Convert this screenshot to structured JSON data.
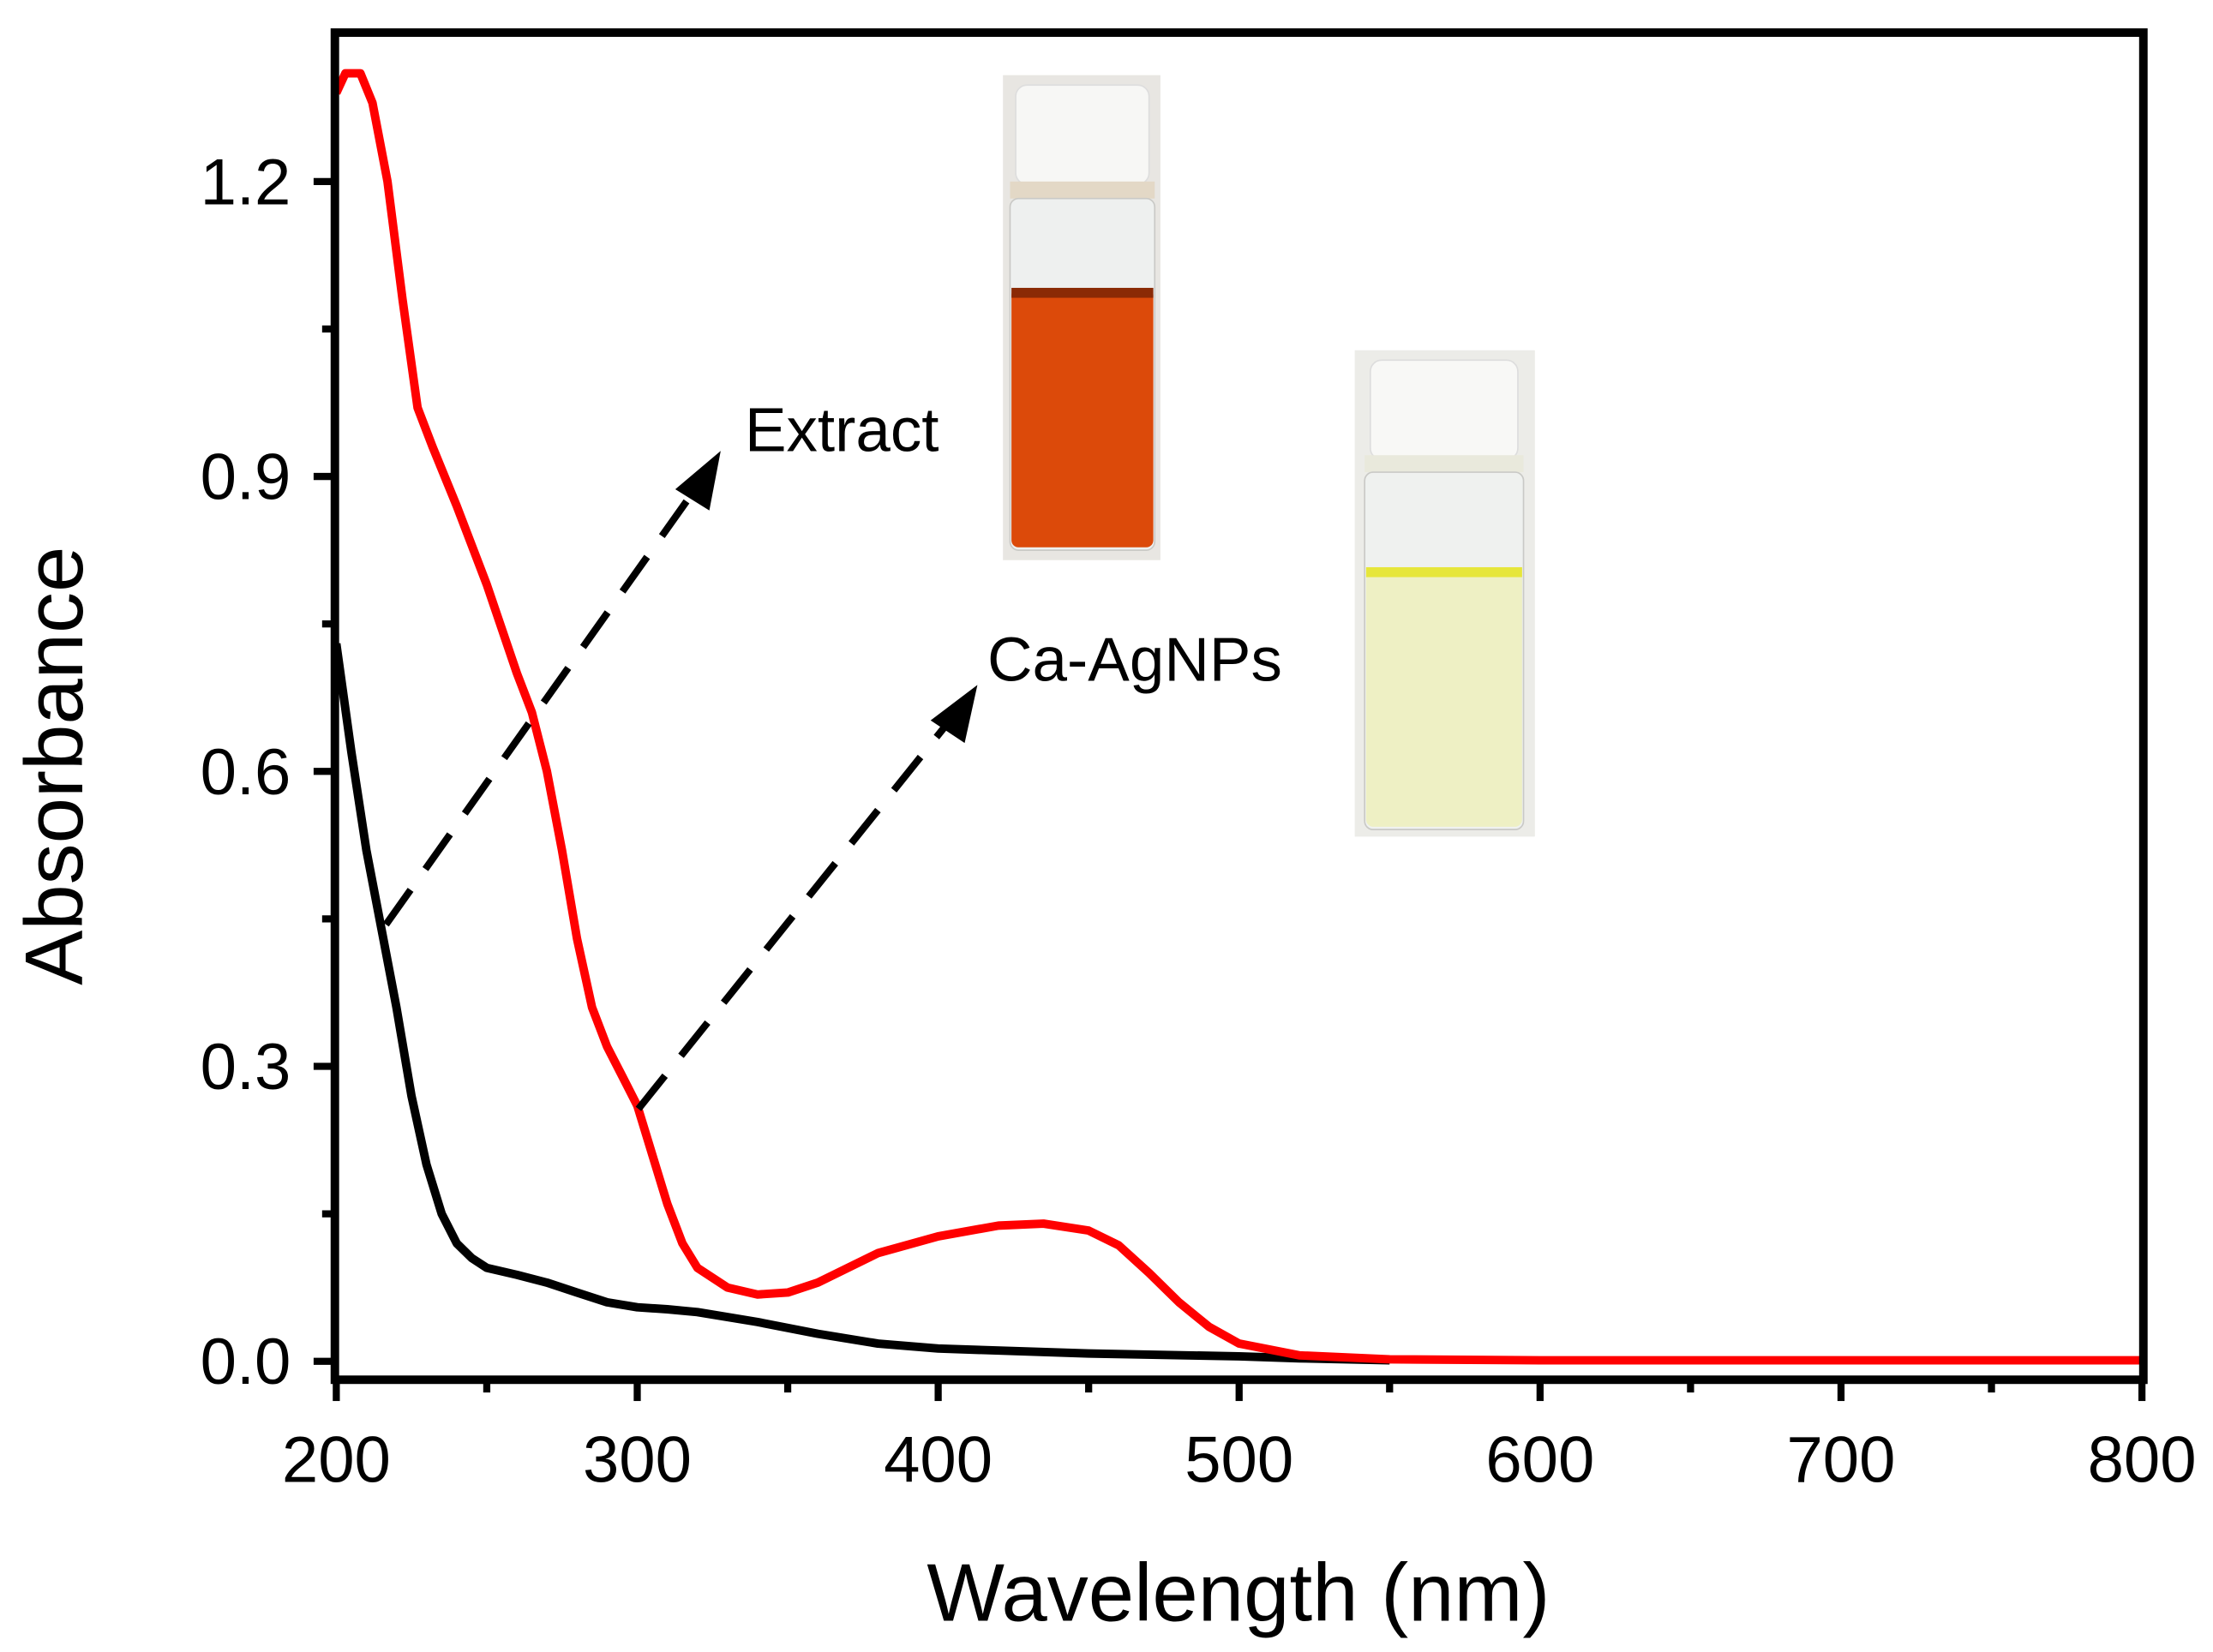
{
  "chart_data": {
    "type": "line",
    "title": "",
    "xlabel": "Wavelength (nm)",
    "ylabel": "Absorbance",
    "xlim": [
      200,
      800
    ],
    "ylim": [
      -0.03,
      1.33
    ],
    "xticks": [
      200,
      300,
      400,
      500,
      600,
      700,
      800
    ],
    "xtick_labels": [
      "200",
      "300",
      "400",
      "500",
      "600",
      "700",
      "800"
    ],
    "yticks": [
      0.0,
      0.3,
      0.6,
      0.9,
      1.2
    ],
    "ytick_labels": [
      "0.0",
      "0.3",
      "0.6",
      "0.9",
      "1.2"
    ],
    "grid": false,
    "series": [
      {
        "name": "Extract",
        "color": "#ff0000",
        "x": [
          200,
          203,
          208,
          212,
          217,
          222,
          227,
          232,
          240,
          250,
          260,
          265,
          270,
          275,
          280,
          285,
          290,
          295,
          300,
          305,
          310,
          315,
          320,
          330,
          340,
          350,
          360,
          380,
          400,
          420,
          435,
          450,
          460,
          470,
          480,
          490,
          500,
          520,
          550,
          600,
          800
        ],
        "y": [
          1.29,
          1.31,
          1.31,
          1.28,
          1.2,
          1.08,
          0.97,
          0.93,
          0.87,
          0.79,
          0.7,
          0.66,
          0.6,
          0.52,
          0.43,
          0.36,
          0.32,
          0.29,
          0.26,
          0.21,
          0.16,
          0.12,
          0.095,
          0.075,
          0.068,
          0.07,
          0.08,
          0.11,
          0.127,
          0.138,
          0.14,
          0.133,
          0.118,
          0.09,
          0.06,
          0.035,
          0.018,
          0.006,
          0.002,
          0.001,
          0.001
        ]
      },
      {
        "name": "Ca-AgNPs",
        "color": "#000000",
        "x": [
          200,
          205,
          210,
          215,
          220,
          225,
          230,
          235,
          240,
          245,
          250,
          260,
          270,
          280,
          290,
          300,
          310,
          320,
          340,
          360,
          380,
          400,
          450,
          500,
          520,
          550
        ],
        "y": [
          0.73,
          0.62,
          0.52,
          0.44,
          0.36,
          0.27,
          0.2,
          0.15,
          0.12,
          0.105,
          0.095,
          0.088,
          0.08,
          0.07,
          0.06,
          0.055,
          0.053,
          0.05,
          0.04,
          0.028,
          0.018,
          0.013,
          0.008,
          0.005,
          0.003,
          0.001
        ]
      }
    ],
    "annotations": [
      {
        "text": "Extract",
        "arrow_from": [
          215,
          0.45
        ],
        "arrow_to": [
          330,
          0.92
        ],
        "inset": "orange extract vial photo"
      },
      {
        "text": "Ca-AgNPs",
        "arrow_from": [
          300,
          0.26
        ],
        "arrow_to": [
          410,
          0.68
        ],
        "inset": "pale yellow nanoparticle vial photo"
      }
    ]
  }
}
